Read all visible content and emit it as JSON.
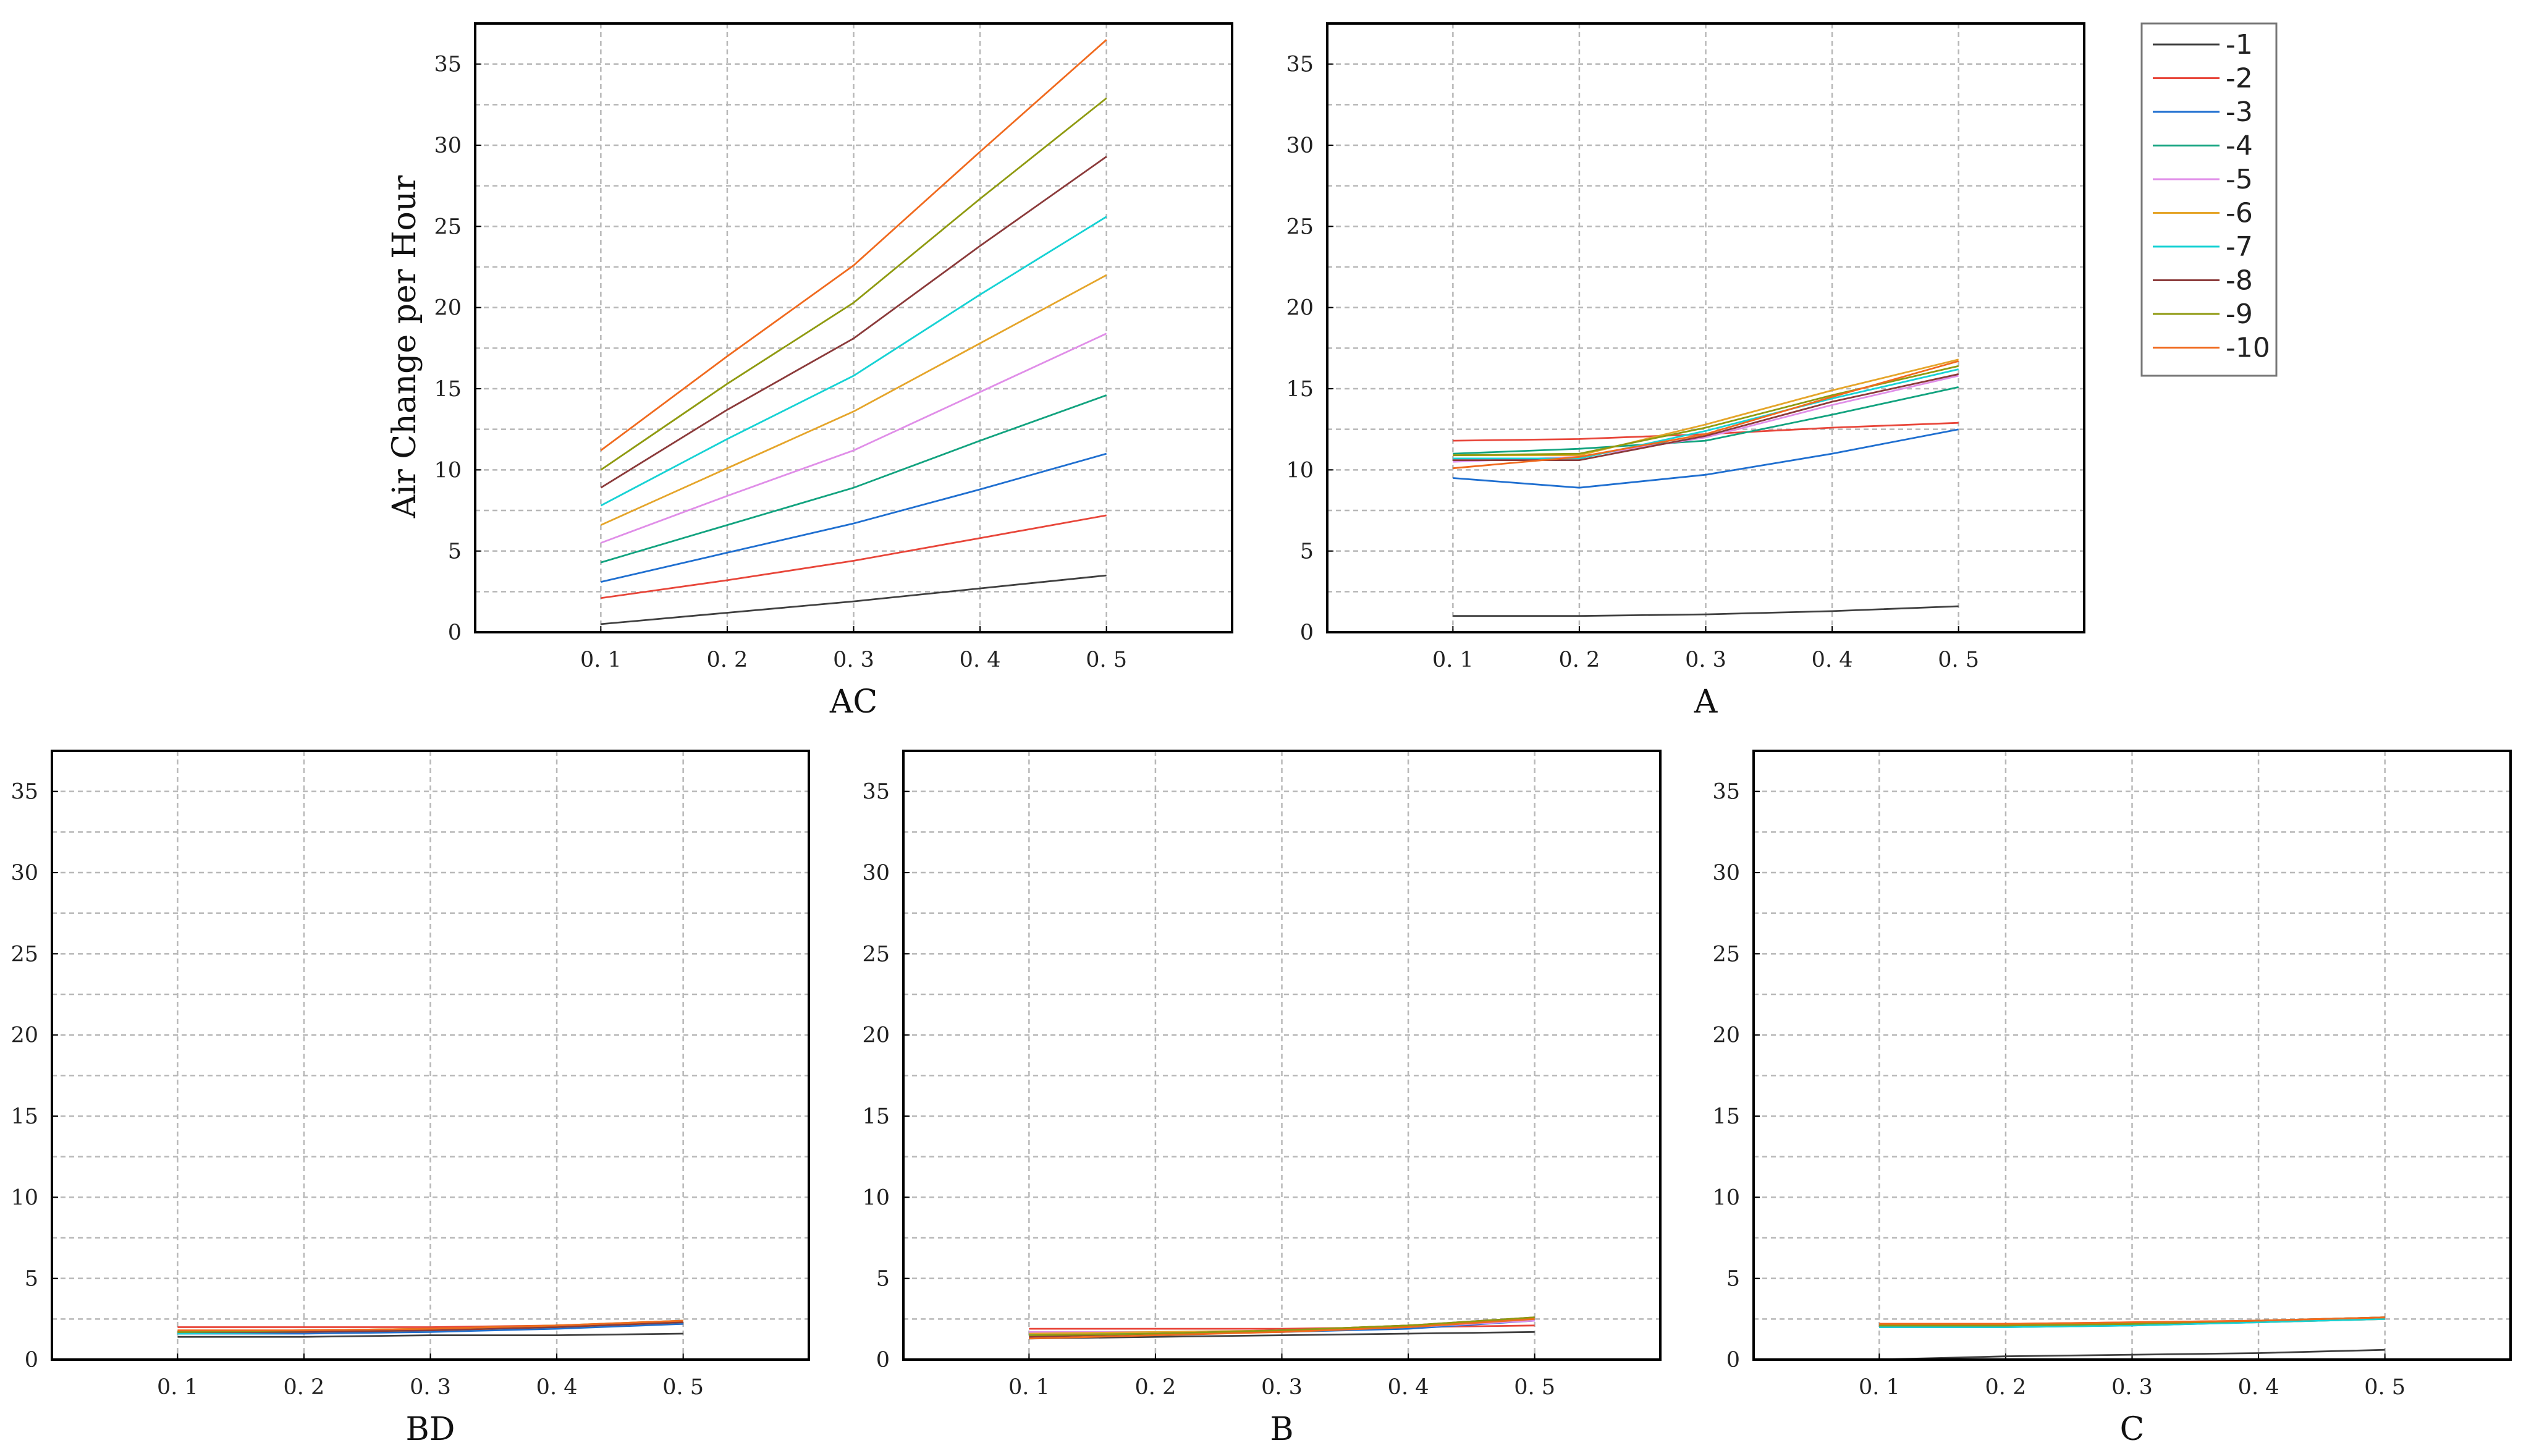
{
  "colors": [
    "#404040",
    "#e8463a",
    "#1f6fd0",
    "#12a37f",
    "#e08ee8",
    "#e5a52a",
    "#17d2d4",
    "#8b3a3a",
    "#8f9a10",
    "#f06a1e"
  ],
  "legend": {
    "entries": [
      "-1",
      "-2",
      "-3",
      "-4",
      "-5",
      "-6",
      "-7",
      "-8",
      "-9",
      "-10"
    ]
  },
  "chart_data": [
    {
      "type": "line",
      "xlabel": "AC",
      "ylabel": "Air Change per Hour",
      "x": [
        "0.1",
        "0.2",
        "0.3",
        "0.4",
        "0.5"
      ],
      "ylim": [
        0,
        37.5
      ],
      "yticks": [
        "0",
        "5",
        "10",
        "15",
        "20",
        "25",
        "30",
        "35"
      ],
      "grid": true,
      "series": [
        {
          "name": "-1",
          "values": [
            0.5,
            1.2,
            1.9,
            2.7,
            3.5
          ]
        },
        {
          "name": "-2",
          "values": [
            2.1,
            3.2,
            4.4,
            5.8,
            7.2
          ]
        },
        {
          "name": "-3",
          "values": [
            3.1,
            4.9,
            6.7,
            8.8,
            11.0
          ]
        },
        {
          "name": "-4",
          "values": [
            4.3,
            6.6,
            8.9,
            11.8,
            14.6
          ]
        },
        {
          "name": "-5",
          "values": [
            5.5,
            8.4,
            11.2,
            14.8,
            18.4
          ]
        },
        {
          "name": "-6",
          "values": [
            6.6,
            10.1,
            13.6,
            17.8,
            22.0
          ]
        },
        {
          "name": "-7",
          "values": [
            7.8,
            11.9,
            15.8,
            20.8,
            25.6
          ]
        },
        {
          "name": "-8",
          "values": [
            8.9,
            13.7,
            18.1,
            23.8,
            29.3
          ]
        },
        {
          "name": "-9",
          "values": [
            10.0,
            15.3,
            20.3,
            26.7,
            32.9
          ]
        },
        {
          "name": "-10",
          "values": [
            11.2,
            17.0,
            22.6,
            29.6,
            36.5
          ]
        }
      ]
    },
    {
      "type": "line",
      "xlabel": "A",
      "ylabel": "",
      "x": [
        "0.1",
        "0.2",
        "0.3",
        "0.4",
        "0.5"
      ],
      "ylim": [
        0,
        37.5
      ],
      "yticks": [
        "0",
        "5",
        "10",
        "15",
        "20",
        "25",
        "30",
        "35"
      ],
      "grid": true,
      "series": [
        {
          "name": "-1",
          "values": [
            1.0,
            1.0,
            1.1,
            1.3,
            1.6
          ]
        },
        {
          "name": "-2",
          "values": [
            11.8,
            11.9,
            12.2,
            12.6,
            12.9
          ]
        },
        {
          "name": "-3",
          "values": [
            9.5,
            8.9,
            9.7,
            11.0,
            12.5
          ]
        },
        {
          "name": "-4",
          "values": [
            11.0,
            11.3,
            11.8,
            13.4,
            15.1
          ]
        },
        {
          "name": "-5",
          "values": [
            10.5,
            10.8,
            12.0,
            14.0,
            15.8
          ]
        },
        {
          "name": "-6",
          "values": [
            10.9,
            10.9,
            12.8,
            14.9,
            16.8
          ]
        },
        {
          "name": "-7",
          "values": [
            10.7,
            10.7,
            12.4,
            14.4,
            16.2
          ]
        },
        {
          "name": "-8",
          "values": [
            10.6,
            10.6,
            12.1,
            14.2,
            15.9
          ]
        },
        {
          "name": "-9",
          "values": [
            10.9,
            11.0,
            12.6,
            14.6,
            16.4
          ]
        },
        {
          "name": "-10",
          "values": [
            10.1,
            10.8,
            12.2,
            14.5,
            16.7
          ]
        }
      ]
    },
    {
      "type": "line",
      "xlabel": "BD",
      "ylabel": "",
      "x": [
        "0.1",
        "0.2",
        "0.3",
        "0.4",
        "0.5"
      ],
      "ylim": [
        0,
        37.5
      ],
      "yticks": [
        "0",
        "5",
        "10",
        "15",
        "20",
        "25",
        "30",
        "35"
      ],
      "grid": true,
      "series": [
        {
          "name": "-1",
          "values": [
            1.4,
            1.4,
            1.5,
            1.5,
            1.6
          ]
        },
        {
          "name": "-2",
          "values": [
            2.0,
            2.0,
            2.0,
            2.1,
            2.2
          ]
        },
        {
          "name": "-3",
          "values": [
            1.6,
            1.6,
            1.7,
            1.9,
            2.2
          ]
        },
        {
          "name": "-4",
          "values": [
            1.6,
            1.7,
            1.8,
            2.0,
            2.3
          ]
        },
        {
          "name": "-5",
          "values": [
            1.7,
            1.7,
            1.8,
            2.0,
            2.3
          ]
        },
        {
          "name": "-6",
          "values": [
            1.7,
            1.8,
            1.9,
            2.1,
            2.3
          ]
        },
        {
          "name": "-7",
          "values": [
            1.6,
            1.7,
            1.8,
            2.0,
            2.3
          ]
        },
        {
          "name": "-8",
          "values": [
            1.7,
            1.7,
            1.8,
            2.0,
            2.3
          ]
        },
        {
          "name": "-9",
          "values": [
            1.7,
            1.8,
            1.9,
            2.1,
            2.4
          ]
        },
        {
          "name": "-10",
          "values": [
            1.8,
            1.8,
            1.9,
            2.1,
            2.4
          ]
        }
      ]
    },
    {
      "type": "line",
      "xlabel": "B",
      "ylabel": "",
      "x": [
        "0.1",
        "0.2",
        "0.3",
        "0.4",
        "0.5"
      ],
      "ylim": [
        0,
        37.5
      ],
      "yticks": [
        "0",
        "5",
        "10",
        "15",
        "20",
        "25",
        "30",
        "35"
      ],
      "grid": true,
      "series": [
        {
          "name": "-1",
          "values": [
            1.3,
            1.4,
            1.5,
            1.6,
            1.7
          ]
        },
        {
          "name": "-2",
          "values": [
            1.9,
            1.9,
            1.9,
            2.0,
            2.1
          ]
        },
        {
          "name": "-3",
          "values": [
            1.6,
            1.6,
            1.7,
            1.9,
            2.4
          ]
        },
        {
          "name": "-4",
          "values": [
            1.5,
            1.6,
            1.8,
            2.0,
            2.5
          ]
        },
        {
          "name": "-5",
          "values": [
            1.7,
            1.7,
            1.8,
            2.0,
            2.4
          ]
        },
        {
          "name": "-6",
          "values": [
            1.6,
            1.7,
            1.8,
            2.1,
            2.5
          ]
        },
        {
          "name": "-7",
          "values": [
            1.5,
            1.6,
            1.8,
            2.0,
            2.5
          ]
        },
        {
          "name": "-8",
          "values": [
            1.4,
            1.6,
            1.8,
            2.1,
            2.6
          ]
        },
        {
          "name": "-9",
          "values": [
            1.5,
            1.6,
            1.8,
            2.1,
            2.6
          ]
        },
        {
          "name": "-10",
          "values": [
            1.3,
            1.5,
            1.7,
            2.0,
            2.5
          ]
        }
      ]
    },
    {
      "type": "line",
      "xlabel": "C",
      "ylabel": "",
      "x": [
        "0.1",
        "0.2",
        "0.3",
        "0.4",
        "0.5"
      ],
      "ylim": [
        0,
        37.5
      ],
      "yticks": [
        "0",
        "5",
        "10",
        "15",
        "20",
        "25",
        "30",
        "35"
      ],
      "grid": true,
      "series": [
        {
          "name": "-1",
          "values": [
            0.0,
            0.2,
            0.3,
            0.4,
            0.6
          ]
        },
        {
          "name": "-2",
          "values": [
            2.2,
            2.2,
            2.3,
            2.4,
            2.5
          ]
        },
        {
          "name": "-3",
          "values": [
            2.0,
            2.0,
            2.1,
            2.3,
            2.5
          ]
        },
        {
          "name": "-4",
          "values": [
            2.0,
            2.1,
            2.2,
            2.4,
            2.6
          ]
        },
        {
          "name": "-5",
          "values": [
            2.1,
            2.1,
            2.2,
            2.4,
            2.6
          ]
        },
        {
          "name": "-6",
          "values": [
            2.1,
            2.1,
            2.2,
            2.3,
            2.5
          ]
        },
        {
          "name": "-7",
          "values": [
            2.0,
            2.0,
            2.1,
            2.3,
            2.5
          ]
        },
        {
          "name": "-8",
          "values": [
            2.1,
            2.1,
            2.2,
            2.4,
            2.6
          ]
        },
        {
          "name": "-9",
          "values": [
            2.1,
            2.1,
            2.2,
            2.4,
            2.6
          ]
        },
        {
          "name": "-10",
          "values": [
            2.2,
            2.2,
            2.3,
            2.4,
            2.6
          ]
        }
      ]
    }
  ]
}
